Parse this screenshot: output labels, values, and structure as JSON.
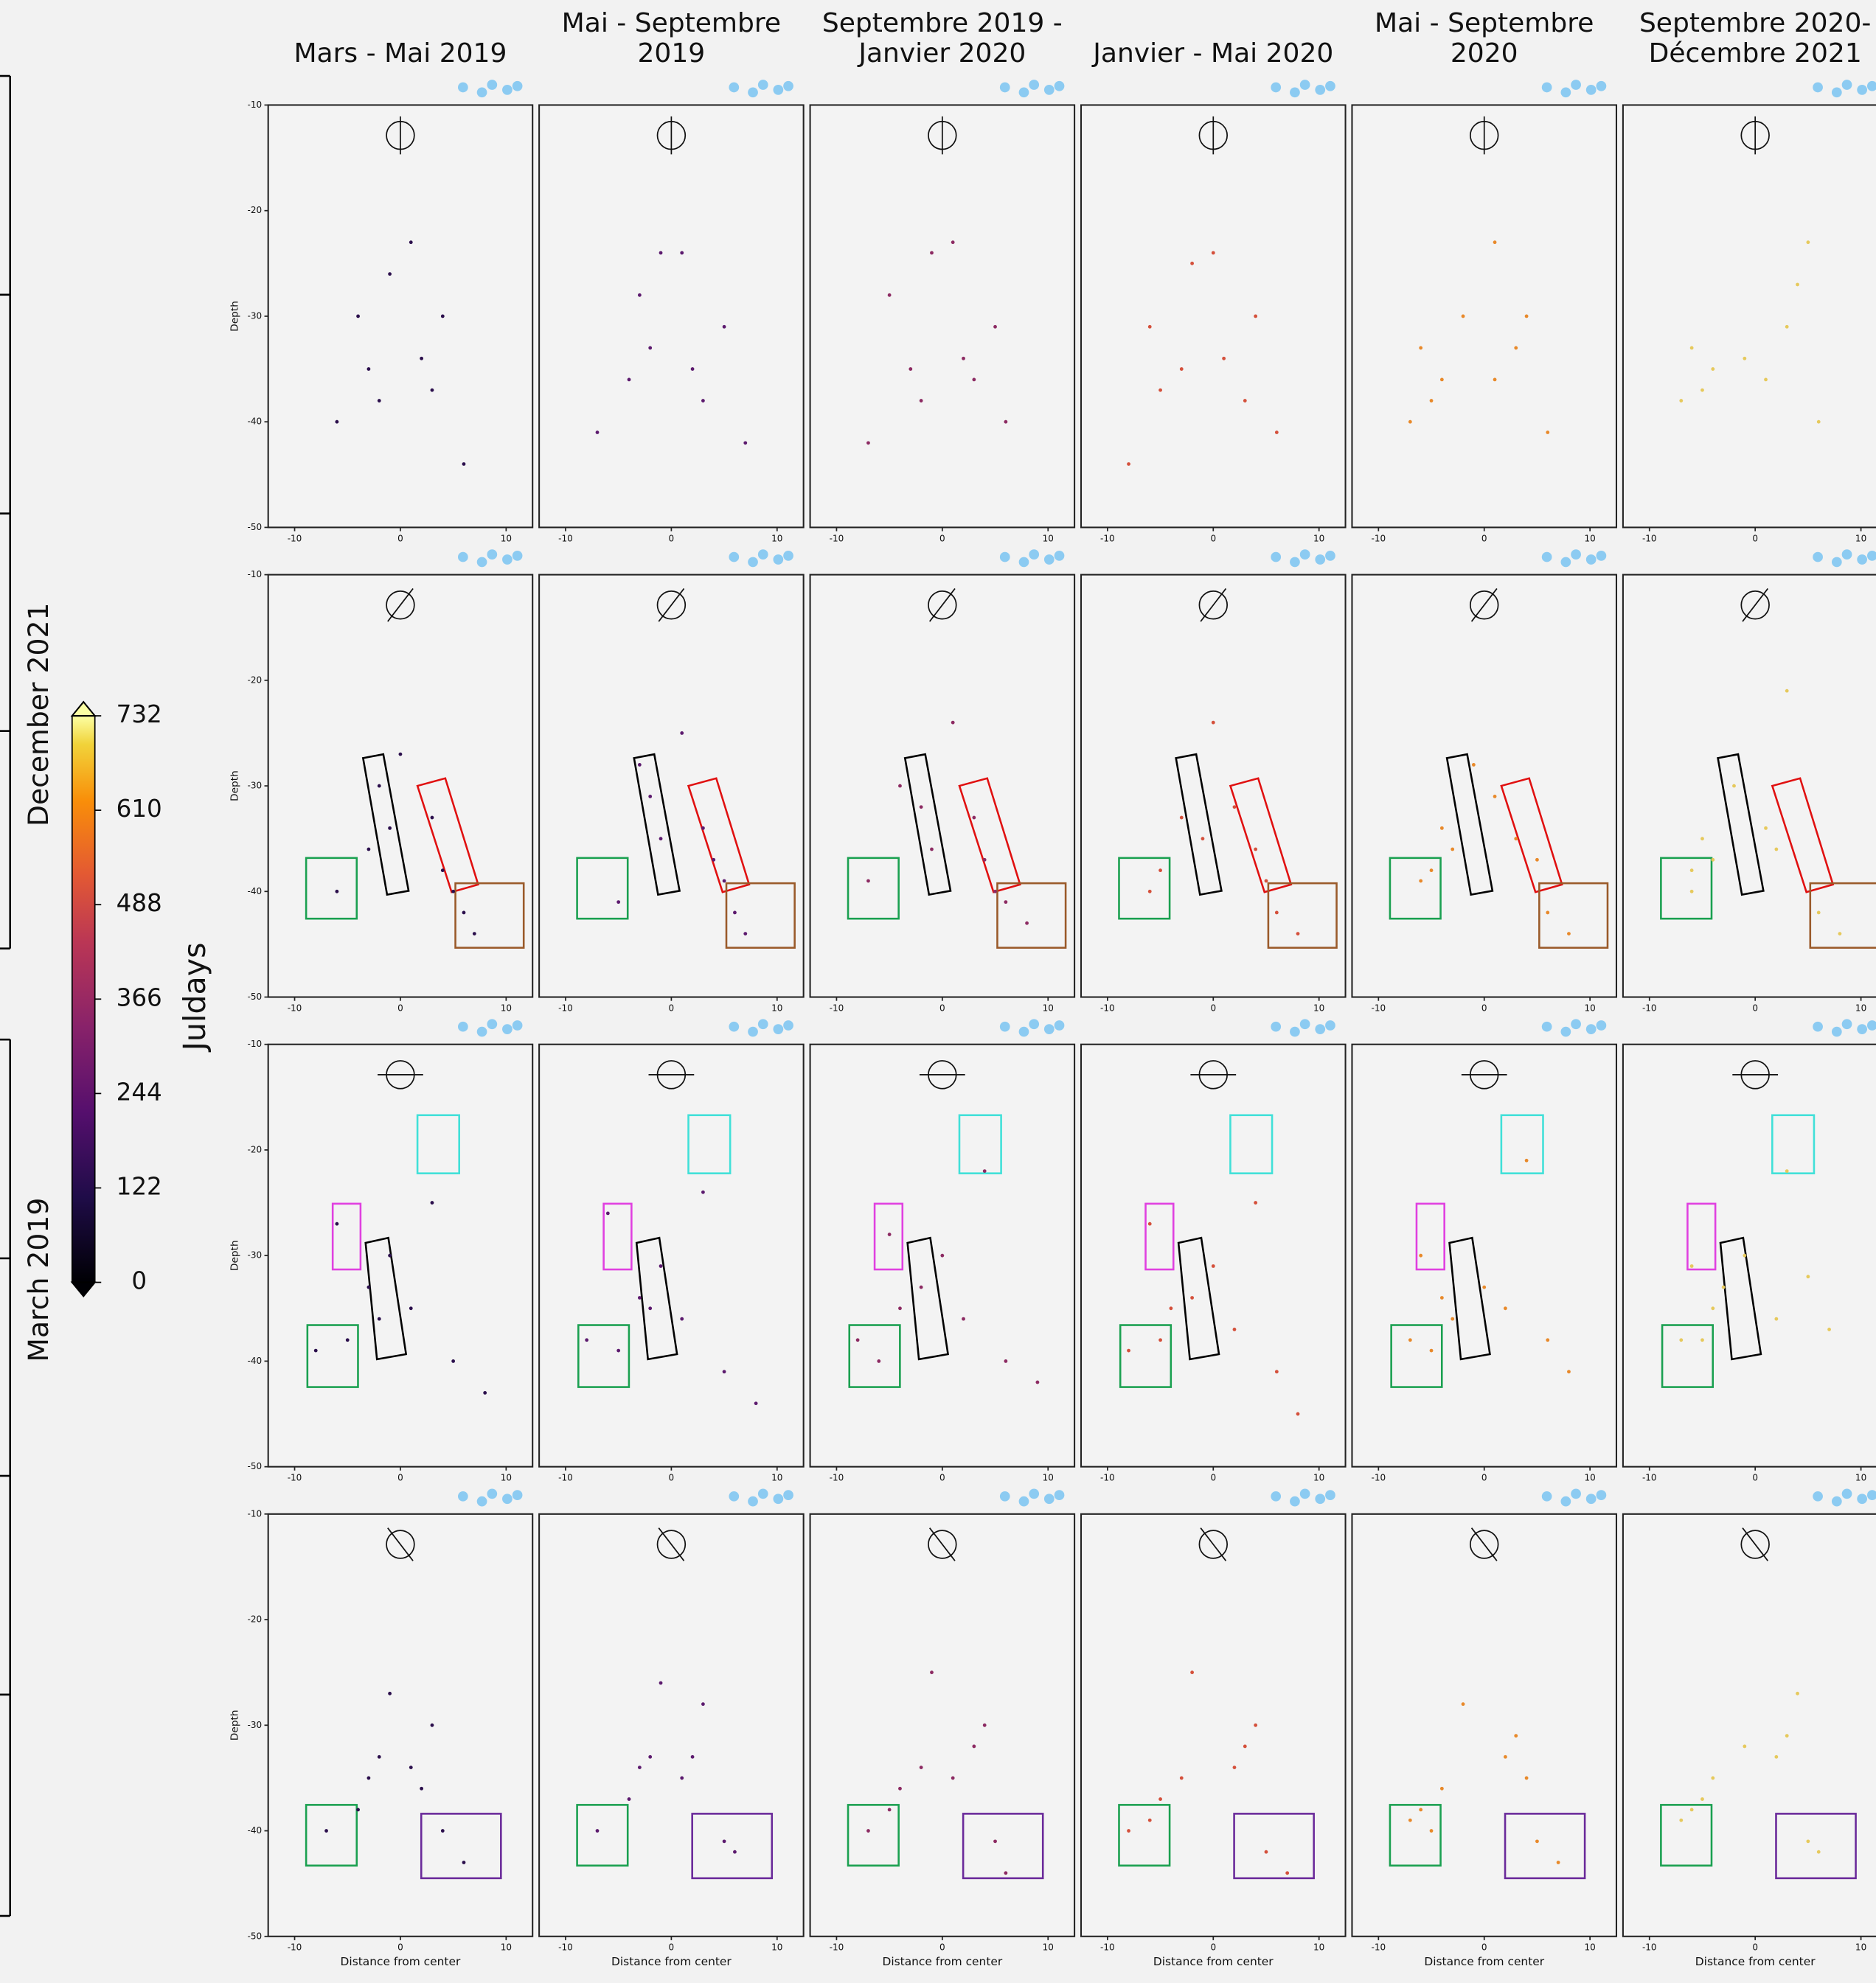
{
  "chart_data": [
    {
      "type": "scatter",
      "title": "Mars - Mai 2019",
      "ylabel": "Depth",
      "color": "#2b0f4c",
      "x": [
        -3,
        -2,
        -4,
        -1,
        2,
        3,
        4,
        1,
        -6,
        6
      ],
      "values": [
        -35,
        -38,
        -30,
        -26,
        -34,
        -37,
        -30,
        -23,
        -40,
        -44
      ],
      "xlim": [
        -12.5,
        12.5
      ],
      "ylim": [
        -50,
        -10
      ],
      "xticks": [
        -10,
        0,
        10
      ],
      "yticks": [
        -10,
        -20,
        -30,
        -40,
        -50
      ]
    },
    {
      "type": "scatter",
      "title": "Mai - Septembre 2019",
      "color": "#5c1a6e",
      "x": [
        -4,
        -2,
        -3,
        -1,
        2,
        3,
        5,
        1,
        -7,
        7
      ],
      "values": [
        -36,
        -33,
        -28,
        -24,
        -35,
        -38,
        -31,
        -24,
        -41,
        -42
      ],
      "xlim": [
        -12.5,
        12.5
      ],
      "ylim": [
        -50,
        -10
      ],
      "xticks": [
        -10,
        0,
        10
      ]
    },
    {
      "type": "scatter",
      "title": "Septembre 2019 - Janvier 2020",
      "color": "#8c2a62",
      "x": [
        -3,
        -2,
        -5,
        -1,
        2,
        3,
        5,
        1,
        -7,
        6
      ],
      "values": [
        -35,
        -38,
        -28,
        -24,
        -34,
        -36,
        -31,
        -23,
        -42,
        -40
      ],
      "xlim": [
        -12.5,
        12.5
      ],
      "ylim": [
        -50,
        -10
      ],
      "xticks": [
        -10,
        0,
        10
      ]
    },
    {
      "type": "scatter",
      "title": "Janvier - Mai 2020",
      "color": "#d4503b",
      "x": [
        -5,
        -3,
        -6,
        -2,
        1,
        3,
        4,
        0,
        -8,
        6
      ],
      "values": [
        -37,
        -35,
        -31,
        -25,
        -34,
        -38,
        -30,
        -24,
        -44,
        -41
      ],
      "xlim": [
        -12.5,
        12.5
      ],
      "ylim": [
        -50,
        -10
      ],
      "xticks": [
        -10,
        0,
        10
      ]
    },
    {
      "type": "scatter",
      "title": "Mai - Septembre 2020",
      "color": "#e8892a",
      "x": [
        -5,
        -4,
        -6,
        -2,
        1,
        3,
        4,
        1,
        -7,
        6
      ],
      "values": [
        -38,
        -36,
        -33,
        -30,
        -36,
        -33,
        -30,
        -23,
        -40,
        -41
      ],
      "xlim": [
        -12.5,
        12.5
      ],
      "ylim": [
        -50,
        -10
      ],
      "xticks": [
        -10,
        0,
        10
      ]
    },
    {
      "type": "scatter",
      "title": "Septembre 2020- Décembre 2021",
      "color": "#e6c95c",
      "x": [
        -5,
        -4,
        -6,
        -1,
        1,
        3,
        4,
        5,
        -7,
        6
      ],
      "values": [
        -37,
        -35,
        -33,
        -34,
        -36,
        -31,
        -27,
        -23,
        -38,
        -40
      ],
      "xlim": [
        -12.5,
        12.5
      ],
      "ylim": [
        -50,
        -10
      ],
      "xticks": [
        -10,
        0,
        10
      ]
    },
    {
      "type": "scatter",
      "ylabel": "Depth",
      "color": "#2b0f4c",
      "x": [
        -2,
        -1,
        -3,
        0,
        3,
        4,
        5,
        6,
        7,
        -6
      ],
      "values": [
        -30,
        -34,
        -36,
        -27,
        -33,
        -38,
        -40,
        -42,
        -44,
        -40
      ],
      "xlim": [
        -12.5,
        12.5
      ],
      "ylim": [
        -50,
        -10
      ],
      "xticks": [
        -10,
        0,
        10
      ],
      "yticks": [
        -10,
        -20,
        -30,
        -40,
        -50
      ]
    },
    {
      "type": "scatter",
      "color": "#5c1a6e",
      "x": [
        -2,
        -1,
        -3,
        1,
        3,
        4,
        5,
        6,
        7,
        -5
      ],
      "values": [
        -31,
        -35,
        -28,
        -25,
        -34,
        -37,
        -39,
        -42,
        -44,
        -41
      ],
      "xlim": [
        -12.5,
        12.5
      ],
      "ylim": [
        -50,
        -10
      ],
      "xticks": [
        -10,
        0,
        10
      ]
    },
    {
      "type": "scatter",
      "color": "#8c2a62",
      "x": [
        -2,
        -1,
        -4,
        1,
        3,
        4,
        5,
        6,
        8,
        -7
      ],
      "values": [
        -32,
        -36,
        -30,
        -24,
        -33,
        -37,
        -40,
        -41,
        -43,
        -39
      ],
      "xlim": [
        -12.5,
        12.5
      ],
      "ylim": [
        -50,
        -10
      ],
      "xticks": [
        -10,
        0,
        10
      ]
    },
    {
      "type": "scatter",
      "color": "#d4503b",
      "x": [
        -3,
        -1,
        -5,
        0,
        2,
        4,
        5,
        6,
        8,
        -6
      ],
      "values": [
        -33,
        -35,
        -38,
        -24,
        -32,
        -36,
        -39,
        -42,
        -44,
        -40
      ],
      "xlim": [
        -12.5,
        12.5
      ],
      "ylim": [
        -50,
        -10
      ],
      "xticks": [
        -10,
        0,
        10
      ]
    },
    {
      "type": "scatter",
      "color": "#e8892a",
      "x": [
        -4,
        -3,
        -6,
        -1,
        1,
        3,
        5,
        6,
        8,
        -5
      ],
      "values": [
        -34,
        -36,
        -39,
        -28,
        -31,
        -35,
        -37,
        -42,
        -44,
        -38
      ],
      "xlim": [
        -12.5,
        12.5
      ],
      "ylim": [
        -50,
        -10
      ],
      "xticks": [
        -10,
        0,
        10
      ]
    },
    {
      "type": "scatter",
      "color": "#e6c95c",
      "x": [
        -5,
        -4,
        -6,
        -2,
        1,
        2,
        3,
        6,
        8,
        -6
      ],
      "values": [
        -35,
        -37,
        -40,
        -30,
        -34,
        -36,
        -21,
        -42,
        -44,
        -38
      ],
      "xlim": [
        -12.5,
        12.5
      ],
      "ylim": [
        -50,
        -10
      ],
      "xticks": [
        -10,
        0,
        10
      ]
    },
    {
      "type": "scatter",
      "ylabel": "Depth",
      "color": "#2b0f4c",
      "x": [
        -6,
        -5,
        -3,
        -2,
        -1,
        1,
        3,
        5,
        -8,
        8
      ],
      "values": [
        -27,
        -38,
        -33,
        -36,
        -30,
        -35,
        -25,
        -40,
        -39,
        -43
      ],
      "xlim": [
        -12.5,
        12.5
      ],
      "ylim": [
        -50,
        -10
      ],
      "xticks": [
        -10,
        0,
        10
      ],
      "yticks": [
        -10,
        -20,
        -30,
        -40,
        -50
      ]
    },
    {
      "type": "scatter",
      "color": "#5c1a6e",
      "x": [
        -6,
        -5,
        -3,
        -2,
        -1,
        1,
        3,
        5,
        -8,
        8
      ],
      "values": [
        -26,
        -39,
        -34,
        -35,
        -31,
        -36,
        -24,
        -41,
        -38,
        -44
      ],
      "xlim": [
        -12.5,
        12.5
      ],
      "ylim": [
        -50,
        -10
      ],
      "xticks": [
        -10,
        0,
        10
      ]
    },
    {
      "type": "scatter",
      "color": "#8c2a62",
      "x": [
        -5,
        -6,
        -4,
        -2,
        0,
        2,
        4,
        6,
        -8,
        9
      ],
      "values": [
        -28,
        -40,
        -35,
        -33,
        -30,
        -36,
        -22,
        -40,
        -38,
        -42
      ],
      "xlim": [
        -12.5,
        12.5
      ],
      "ylim": [
        -50,
        -10
      ],
      "xticks": [
        -10,
        0,
        10
      ]
    },
    {
      "type": "scatter",
      "color": "#d4503b",
      "x": [
        -6,
        -5,
        -4,
        -2,
        0,
        2,
        4,
        6,
        -8,
        8
      ],
      "values": [
        -27,
        -38,
        -35,
        -34,
        -31,
        -37,
        -25,
        -41,
        -39,
        -45
      ],
      "xlim": [
        -12.5,
        12.5
      ],
      "ylim": [
        -50,
        -10
      ],
      "xticks": [
        -10,
        0,
        10
      ]
    },
    {
      "type": "scatter",
      "color": "#e8892a",
      "x": [
        -6,
        -5,
        -4,
        -3,
        0,
        2,
        4,
        6,
        -7,
        8
      ],
      "values": [
        -30,
        -39,
        -34,
        -36,
        -33,
        -35,
        -21,
        -38,
        -38,
        -41
      ],
      "xlim": [
        -12.5,
        12.5
      ],
      "ylim": [
        -50,
        -10
      ],
      "xticks": [
        -10,
        0,
        10
      ]
    },
    {
      "type": "scatter",
      "color": "#e6c95c",
      "x": [
        -6,
        -5,
        -4,
        -3,
        -1,
        2,
        3,
        5,
        -7,
        7
      ],
      "values": [
        -31,
        -38,
        -35,
        -33,
        -30,
        -36,
        -22,
        -32,
        -38,
        -37
      ],
      "xlim": [
        -12.5,
        12.5
      ],
      "ylim": [
        -50,
        -10
      ],
      "xticks": [
        -10,
        0,
        10
      ]
    },
    {
      "type": "scatter",
      "ylabel": "Depth",
      "xlabel": "Distance from center",
      "color": "#2b0f4c",
      "x": [
        -3,
        -2,
        -4,
        -1,
        1,
        2,
        3,
        4,
        -7,
        6
      ],
      "values": [
        -35,
        -33,
        -38,
        -27,
        -34,
        -36,
        -30,
        -40,
        -40,
        -43
      ],
      "xlim": [
        -12.5,
        12.5
      ],
      "ylim": [
        -50,
        -10
      ],
      "xticks": [
        -10,
        0,
        10
      ],
      "yticks": [
        -10,
        -20,
        -30,
        -40,
        -50
      ]
    },
    {
      "type": "scatter",
      "xlabel": "Distance from center",
      "color": "#5c1a6e",
      "x": [
        -3,
        -2,
        -4,
        -1,
        1,
        2,
        3,
        5,
        -7,
        6
      ],
      "values": [
        -34,
        -33,
        -37,
        -26,
        -35,
        -33,
        -28,
        -41,
        -40,
        -42
      ],
      "xlim": [
        -12.5,
        12.5
      ],
      "ylim": [
        -50,
        -10
      ],
      "xticks": [
        -10,
        0,
        10
      ]
    },
    {
      "type": "scatter",
      "xlabel": "Distance from center",
      "color": "#8c2a62",
      "x": [
        -4,
        -2,
        -5,
        -1,
        1,
        3,
        4,
        5,
        -7,
        6
      ],
      "values": [
        -36,
        -34,
        -38,
        -25,
        -35,
        -32,
        -30,
        -41,
        -40,
        -44
      ],
      "xlim": [
        -12.5,
        12.5
      ],
      "ylim": [
        -50,
        -10
      ],
      "xticks": [
        -10,
        0,
        10
      ]
    },
    {
      "type": "scatter",
      "xlabel": "Distance from center",
      "color": "#d4503b",
      "x": [
        -5,
        -3,
        -6,
        -2,
        2,
        3,
        4,
        5,
        -8,
        7
      ],
      "values": [
        -37,
        -35,
        -39,
        -25,
        -34,
        -32,
        -30,
        -42,
        -40,
        -44
      ],
      "xlim": [
        -12.5,
        12.5
      ],
      "ylim": [
        -50,
        -10
      ],
      "xticks": [
        -10,
        0,
        10
      ]
    },
    {
      "type": "scatter",
      "xlabel": "Distance from center",
      "color": "#e8892a",
      "x": [
        -6,
        -4,
        -5,
        -2,
        2,
        3,
        4,
        5,
        -7,
        7
      ],
      "values": [
        -38,
        -36,
        -40,
        -28,
        -33,
        -31,
        -35,
        -41,
        -39,
        -43
      ],
      "xlim": [
        -12.5,
        12.5
      ],
      "ylim": [
        -50,
        -10
      ],
      "xticks": [
        -10,
        0,
        10
      ]
    },
    {
      "type": "scatter",
      "xlabel": "Distance from center",
      "color": "#e6c95c",
      "x": [
        -6,
        -5,
        -4,
        -1,
        2,
        3,
        4,
        5,
        -7,
        6
      ],
      "values": [
        -38,
        -37,
        -35,
        -32,
        -33,
        -31,
        -27,
        -41,
        -39,
        -42
      ],
      "xlim": [
        -12.5,
        12.5
      ],
      "ylim": [
        -50,
        -10
      ],
      "xticks": [
        -10,
        0,
        10
      ]
    }
  ],
  "colorbar": {
    "label": "Juldays",
    "ylim": [
      0,
      732
    ],
    "yticks": [
      0,
      122,
      244,
      366,
      488,
      610,
      732
    ]
  },
  "timeline": {
    "labels": [
      "December 2021",
      "March 2019"
    ]
  }
}
